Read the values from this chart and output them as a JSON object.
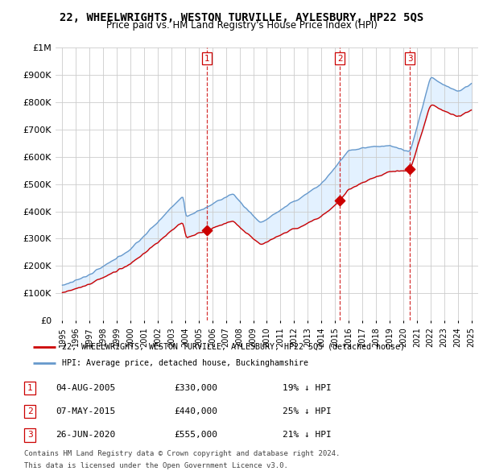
{
  "title": "22, WHEELWRIGHTS, WESTON TURVILLE, AYLESBURY, HP22 5QS",
  "subtitle": "Price paid vs. HM Land Registry's House Price Index (HPI)",
  "ylabel_ticks": [
    "£0",
    "£100K",
    "£200K",
    "£300K",
    "£400K",
    "£500K",
    "£600K",
    "£700K",
    "£800K",
    "£900K",
    "£1M"
  ],
  "ytick_values": [
    0,
    100000,
    200000,
    300000,
    400000,
    500000,
    600000,
    700000,
    800000,
    900000,
    1000000
  ],
  "ylim": [
    0,
    1000000
  ],
  "hpi_color": "#6699cc",
  "hpi_fill_color": "#ddeeff",
  "price_color": "#cc0000",
  "sale1": {
    "date_x": 2005.58,
    "price": 330000,
    "label": "1"
  },
  "sale2": {
    "date_x": 2015.35,
    "price": 440000,
    "label": "2"
  },
  "sale3": {
    "date_x": 2020.48,
    "price": 555000,
    "label": "3"
  },
  "legend_line1": "22, WHEELWRIGHTS, WESTON TURVILLE, AYLESBURY, HP22 5QS (detached house)",
  "legend_line2": "HPI: Average price, detached house, Buckinghamshire",
  "table_rows": [
    {
      "num": "1",
      "date": "04-AUG-2005",
      "price": "£330,000",
      "pct": "19% ↓ HPI"
    },
    {
      "num": "2",
      "date": "07-MAY-2015",
      "price": "£440,000",
      "pct": "25% ↓ HPI"
    },
    {
      "num": "3",
      "date": "26-JUN-2020",
      "price": "£555,000",
      "pct": "21% ↓ HPI"
    }
  ],
  "footnote1": "Contains HM Land Registry data © Crown copyright and database right 2024.",
  "footnote2": "This data is licensed under the Open Government Licence v3.0.",
  "xlim": [
    1994.5,
    2025.5
  ],
  "xtick_years": [
    1995,
    1996,
    1997,
    1998,
    1999,
    2000,
    2001,
    2002,
    2003,
    2004,
    2005,
    2006,
    2007,
    2008,
    2009,
    2010,
    2011,
    2012,
    2013,
    2014,
    2015,
    2016,
    2017,
    2018,
    2019,
    2020,
    2021,
    2022,
    2023,
    2024,
    2025
  ]
}
